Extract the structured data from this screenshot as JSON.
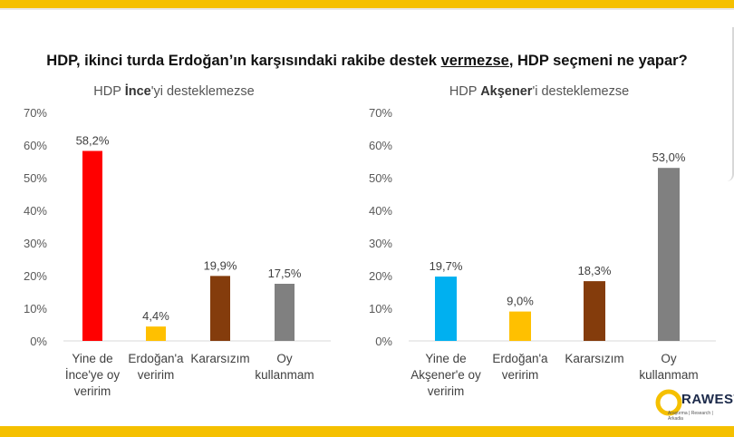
{
  "title": {
    "part1": "HDP, ikinci turda Erdoğan’ın karşısındaki rakibe destek ",
    "underlined": "vermezse",
    "part2": ", HDP seçmeni ne yapar?"
  },
  "left_subtitle": {
    "pre": "HDP ",
    "bold": "İnce",
    "post": "'yi desteklemezse"
  },
  "right_subtitle": {
    "pre": "HDP ",
    "bold": "Akşener",
    "post": "'i desteklemezse"
  },
  "logo": {
    "text": "RAWEST",
    "tagline": "Araştırma | Research | Arkadia"
  },
  "chart_data": [
    {
      "type": "bar",
      "categories": [
        [
          "Yine de",
          "İnce'ye oy",
          "veririm"
        ],
        [
          "Erdoğan'a",
          "veririm"
        ],
        [
          "Kararsızım"
        ],
        [
          "Oy",
          "kullanmam"
        ]
      ],
      "values": [
        58.2,
        4.4,
        19.9,
        17.5
      ],
      "data_labels": [
        "58,2%",
        "4,4%",
        "19,9%",
        "17,5%"
      ],
      "colors": [
        "#ff0000",
        "#ffc000",
        "#843c0c",
        "#808080"
      ],
      "yticks": [
        "0%",
        "10%",
        "20%",
        "30%",
        "40%",
        "50%",
        "60%",
        "70%"
      ],
      "ylim": [
        0,
        70
      ],
      "grid": false
    },
    {
      "type": "bar",
      "categories": [
        [
          "Yine de",
          "Akşener'e oy",
          "veririm"
        ],
        [
          "Erdoğan'a",
          "veririm"
        ],
        [
          "Kararsızım"
        ],
        [
          "Oy",
          "kullanmam"
        ]
      ],
      "values": [
        19.7,
        9.0,
        18.3,
        53.0
      ],
      "data_labels": [
        "19,7%",
        "9,0%",
        "18,3%",
        "53,0%"
      ],
      "colors": [
        "#00b0f0",
        "#ffc000",
        "#843c0c",
        "#808080"
      ],
      "yticks": [
        "0%",
        "10%",
        "20%",
        "30%",
        "40%",
        "50%",
        "60%",
        "70%"
      ],
      "ylim": [
        0,
        70
      ],
      "grid": false
    }
  ]
}
